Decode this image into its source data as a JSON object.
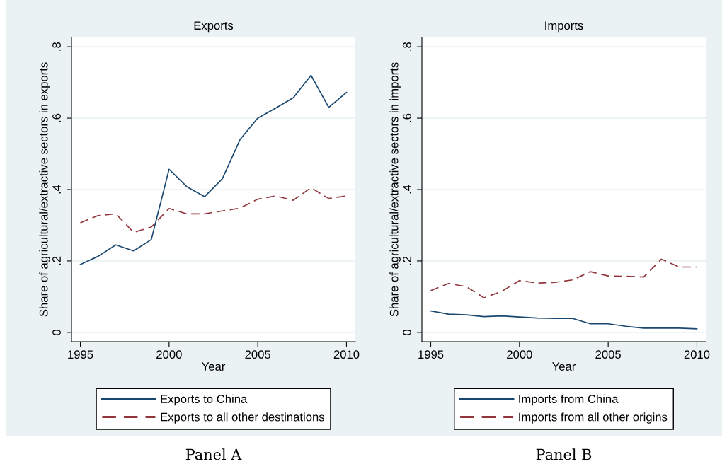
{
  "chart_data": [
    {
      "type": "line",
      "title": "Exports",
      "xlabel": "Year",
      "ylabel": "Share of agricultural/extractive sectors in exports",
      "x": [
        1995,
        1996,
        1997,
        1998,
        1999,
        2000,
        2001,
        2002,
        2003,
        2004,
        2005,
        2006,
        2007,
        2008,
        2009,
        2010
      ],
      "series": [
        {
          "name": "Exports to China",
          "color": "#1a476f",
          "line_style": "solid",
          "values": [
            0.19,
            0.213,
            0.245,
            0.228,
            0.26,
            0.457,
            0.408,
            0.38,
            0.43,
            0.54,
            0.6,
            0.628,
            0.657,
            0.72,
            0.63,
            0.672
          ]
        },
        {
          "name": "Exports to all other destinations",
          "color": "#90353b",
          "line_style": "dashed",
          "values": [
            0.307,
            0.327,
            0.332,
            0.28,
            0.295,
            0.347,
            0.332,
            0.332,
            0.34,
            0.348,
            0.373,
            0.382,
            0.37,
            0.405,
            0.375,
            0.382
          ]
        }
      ],
      "xlim": [
        1994.5,
        2010.5
      ],
      "xticks": [
        1995,
        2000,
        2005,
        2010
      ],
      "ylim": [
        -0.026,
        0.826
      ],
      "yticks": [
        0,
        {
          "value": 0.2,
          "label": ".2"
        },
        {
          "value": 0.4,
          "label": ".4"
        },
        {
          "value": 0.6,
          "label": ".6"
        },
        {
          "value": 0.8,
          "label": ".8"
        }
      ],
      "grid": "y",
      "legend": "bottom",
      "marker": "none",
      "annotations": [
        "Panel A"
      ]
    },
    {
      "type": "line",
      "title": "Imports",
      "xlabel": "Year",
      "ylabel": "Share of agricultural/extractive sectors in imports",
      "x": [
        1995,
        1996,
        1997,
        1998,
        1999,
        2000,
        2001,
        2002,
        2003,
        2004,
        2005,
        2006,
        2007,
        2008,
        2009,
        2010
      ],
      "series": [
        {
          "name": "Imports from China",
          "color": "#1a476f",
          "line_style": "solid",
          "values": [
            0.06,
            0.051,
            0.049,
            0.044,
            0.046,
            0.043,
            0.04,
            0.039,
            0.039,
            0.024,
            0.024,
            0.017,
            0.012,
            0.012,
            0.012,
            0.01
          ]
        },
        {
          "name": "Imports from all other origins",
          "color": "#90353b",
          "line_style": "dashed",
          "values": [
            0.117,
            0.137,
            0.128,
            0.097,
            0.115,
            0.145,
            0.138,
            0.14,
            0.147,
            0.17,
            0.158,
            0.157,
            0.155,
            0.205,
            0.183,
            0.183
          ]
        }
      ],
      "xlim": [
        1994.5,
        2010.5
      ],
      "xticks": [
        1995,
        2000,
        2005,
        2010
      ],
      "ylim": [
        -0.026,
        0.826
      ],
      "yticks": [
        0,
        {
          "value": 0.2,
          "label": ".2"
        },
        {
          "value": 0.4,
          "label": ".4"
        },
        {
          "value": 0.6,
          "label": ".6"
        },
        {
          "value": 0.8,
          "label": ".8"
        }
      ],
      "grid": "y",
      "legend": "bottom",
      "marker": "none",
      "annotations": [
        "Panel B"
      ]
    }
  ]
}
